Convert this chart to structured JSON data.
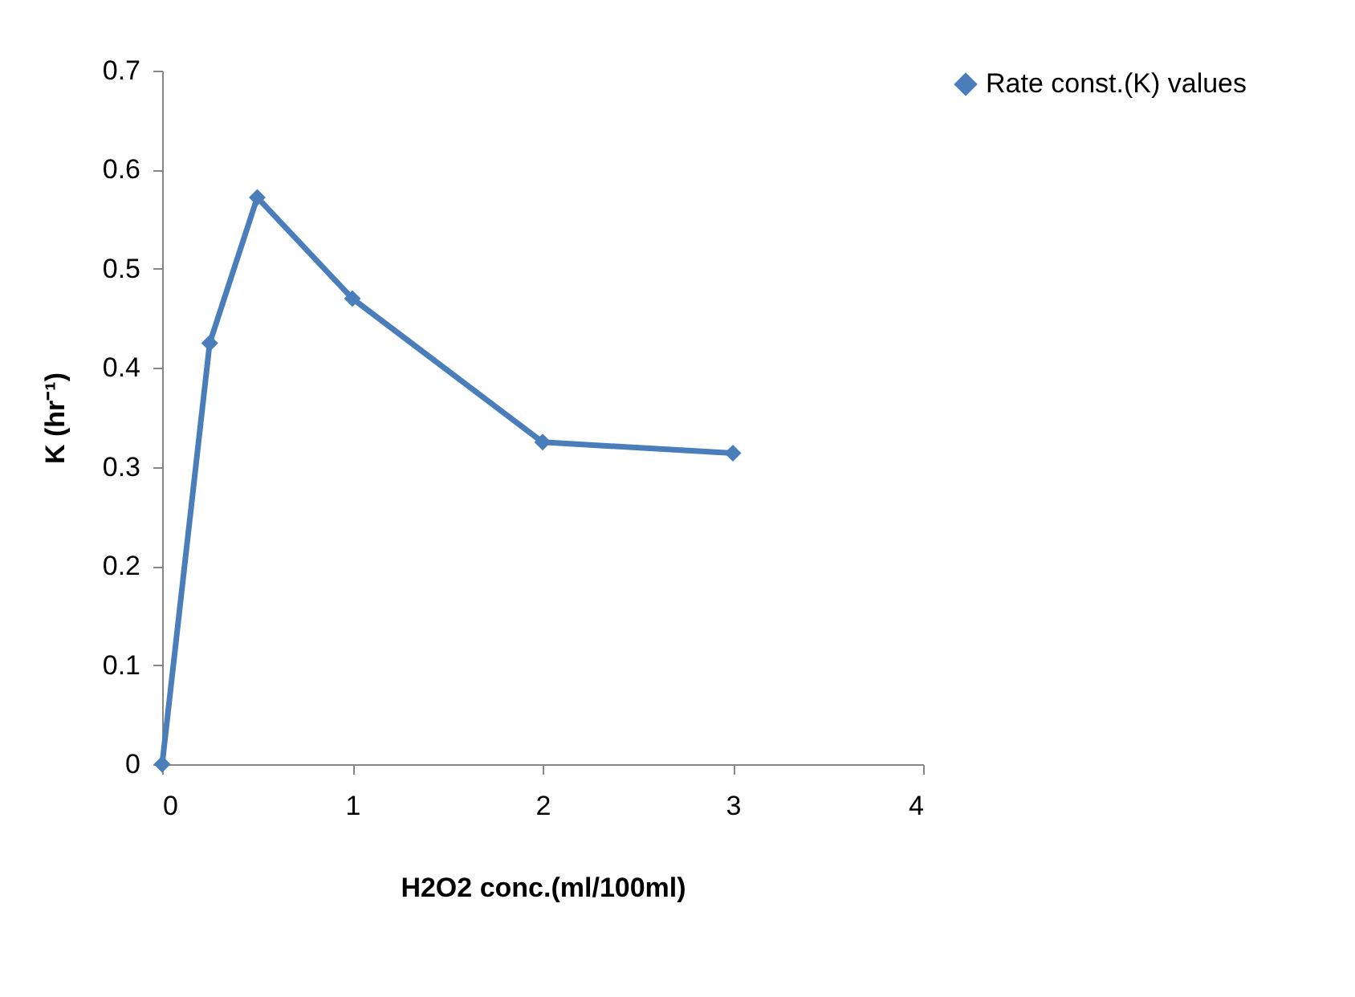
{
  "chart_data": {
    "type": "line",
    "xlabel": "H2O2 conc.(ml/100ml)",
    "ylabel": "K (hr⁻¹)",
    "x": [
      0,
      0.25,
      0.5,
      1,
      2,
      3
    ],
    "series": [
      {
        "name": "Rate const.(K) values",
        "color": "#4a7ebb",
        "values": [
          0,
          0.425,
          0.572,
          0.47,
          0.325,
          0.314
        ]
      }
    ],
    "xlim": [
      0,
      4
    ],
    "xticks": [
      0,
      1,
      2,
      3,
      4
    ],
    "ylim": [
      0,
      0.7
    ],
    "yticks": [
      0,
      0.1,
      0.2,
      0.3,
      0.4,
      0.5,
      0.6,
      0.7
    ],
    "grid": false,
    "legend": "right",
    "marker": "diamond",
    "line_style": "solid"
  }
}
